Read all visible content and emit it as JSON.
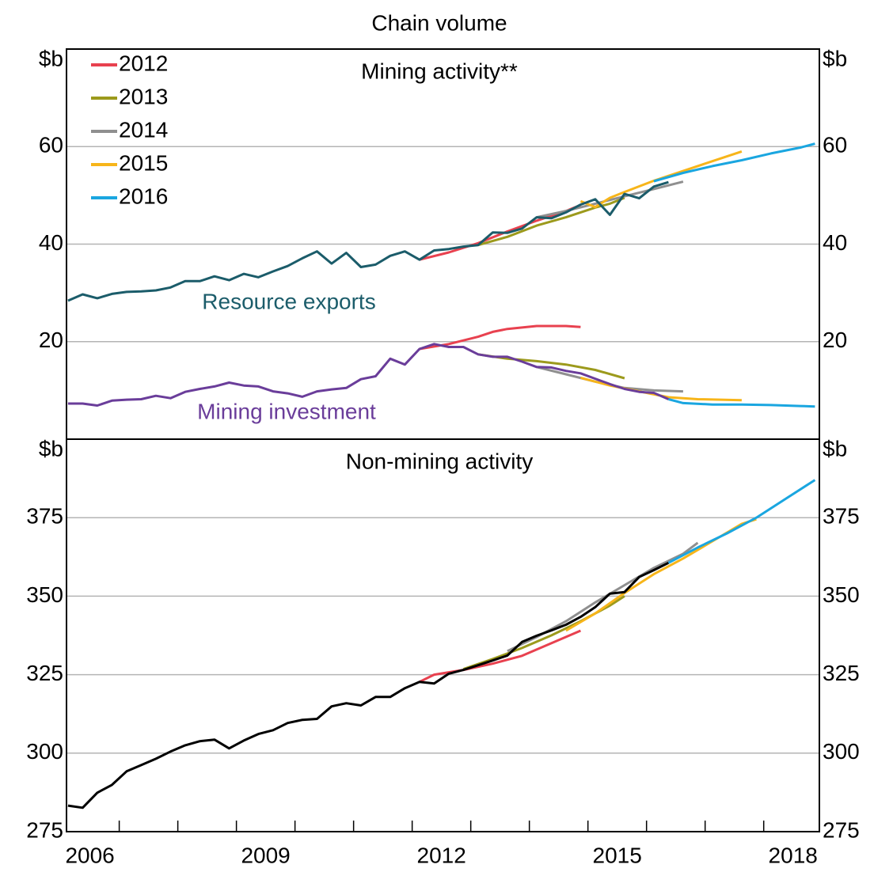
{
  "chart_data": [
    {
      "type": "line",
      "subtitle": "Chain volume",
      "title": "Mining activity**",
      "y_unit": "$b",
      "xlim": [
        2006.1,
        2018.95
      ],
      "ylim": [
        0,
        80
      ],
      "yticks": [
        20,
        40,
        60
      ],
      "grid": true,
      "legend": "upper left",
      "x": [
        2006.125,
        2006.375,
        2006.625,
        2006.875,
        2007.125,
        2007.375,
        2007.625,
        2007.875,
        2008.125,
        2008.375,
        2008.625,
        2008.875,
        2009.125,
        2009.375,
        2009.625,
        2009.875,
        2010.125,
        2010.375,
        2010.625,
        2010.875,
        2011.125,
        2011.375,
        2011.625,
        2011.875,
        2012.125,
        2012.375,
        2012.625,
        2012.875,
        2013.125,
        2013.375,
        2013.625,
        2013.875,
        2014.125,
        2014.375,
        2014.625,
        2014.875,
        2015.125,
        2015.375,
        2015.625,
        2015.875,
        2016.125,
        2016.375
      ],
      "series": [
        {
          "label": "Resource exports",
          "color": "#1b5c6a",
          "values": [
            28.4,
            29.7,
            28.9,
            29.8,
            30.2,
            30.3,
            30.5,
            31.1,
            32.4,
            32.4,
            33.4,
            32.6,
            33.9,
            33.2,
            34.4,
            35.5,
            37.1,
            38.5,
            36.0,
            38.2,
            35.3,
            35.8,
            37.6,
            38.5,
            36.8,
            38.7,
            39.0,
            39.5,
            39.8,
            42.4,
            42.3,
            43.2,
            45.5,
            45.3,
            46.5,
            48.1,
            49.2,
            46.0,
            50.3,
            49.4,
            51.8,
            52.7
          ]
        },
        {
          "label": "Mining investment",
          "color": "#6a3d9a",
          "values": [
            7.3,
            7.3,
            6.9,
            7.9,
            8.1,
            8.2,
            8.9,
            8.4,
            9.7,
            10.3,
            10.8,
            11.6,
            11.0,
            10.8,
            9.8,
            9.4,
            8.7,
            9.8,
            10.2,
            10.5,
            12.3,
            12.9,
            16.5,
            15.3,
            18.5,
            19.5,
            18.9,
            18.9,
            17.4,
            16.9,
            16.9,
            15.9,
            14.8,
            14.7,
            14.0,
            13.5,
            12.4,
            11.3,
            10.3,
            9.7,
            9.5,
            8.2
          ]
        }
      ],
      "forecasts": [
        {
          "name": "2012",
          "color": "#e8414f",
          "lines": [
            {
              "x": [
                2012.125,
                2012.625,
                2013.125,
                2013.625,
                2014.125,
                2014.625,
                2014.875
              ],
              "values": [
                36.8,
                38.3,
                40.2,
                42.6,
                44.8,
                46.8,
                48.0
              ]
            },
            {
              "x": [
                2012.125,
                2012.625,
                2013.125,
                2013.375,
                2013.625,
                2014.125,
                2014.625,
                2014.875
              ],
              "values": [
                18.5,
                19.5,
                21.0,
                22.0,
                22.6,
                23.2,
                23.2,
                23.0
              ]
            }
          ]
        },
        {
          "name": "2013",
          "color": "#9c9a1c",
          "lines": [
            {
              "x": [
                2013.125,
                2013.625,
                2014.125,
                2014.625,
                2015.125,
                2015.375,
                2015.625
              ],
              "values": [
                39.8,
                41.5,
                43.8,
                45.5,
                47.5,
                48.3,
                49.5
              ]
            },
            {
              "x": [
                2013.125,
                2013.625,
                2014.125,
                2014.625,
                2015.125,
                2015.625
              ],
              "values": [
                17.4,
                16.5,
                16.0,
                15.3,
                14.2,
                12.5
              ]
            }
          ]
        },
        {
          "name": "2014",
          "color": "#8f8f8f",
          "lines": [
            {
              "x": [
                2014.125,
                2014.625,
                2015.125,
                2015.625,
                2016.125,
                2016.625
              ],
              "values": [
                45.5,
                46.8,
                48.3,
                49.8,
                51.3,
                52.8
              ]
            },
            {
              "x": [
                2014.125,
                2014.625,
                2015.125,
                2015.625,
                2016.125,
                2016.625
              ],
              "values": [
                14.8,
                13.3,
                11.8,
                10.5,
                10.0,
                9.8
              ]
            }
          ]
        },
        {
          "name": "2015",
          "color": "#f7b51a",
          "lines": [
            {
              "x": [
                2014.875,
                2015.125,
                2015.375,
                2015.625,
                2016.125,
                2016.625,
                2017.125,
                2017.625
              ],
              "values": [
                48.8,
                47.6,
                49.5,
                50.7,
                53.0,
                55.0,
                57.0,
                59.0
              ]
            },
            {
              "x": [
                2014.875,
                2015.375,
                2015.875,
                2016.375,
                2016.875,
                2017.625
              ],
              "values": [
                12.6,
                11.0,
                9.8,
                8.6,
                8.2,
                8.0
              ]
            }
          ]
        },
        {
          "name": "2016",
          "color": "#1aa6e0",
          "lines": [
            {
              "x": [
                2016.125,
                2016.625,
                2017.125,
                2017.625,
                2018.125,
                2018.625,
                2018.875
              ],
              "values": [
                52.9,
                54.6,
                56.0,
                57.2,
                58.6,
                59.8,
                60.6
              ]
            },
            {
              "x": [
                2016.375,
                2016.625,
                2017.125,
                2017.625,
                2018.125,
                2018.625,
                2018.875
              ],
              "values": [
                8.2,
                7.4,
                7.1,
                7.1,
                7.0,
                6.8,
                6.7
              ]
            }
          ]
        }
      ]
    },
    {
      "type": "line",
      "title": "Non-mining activity",
      "y_unit": "$b",
      "xlim": [
        2006.1,
        2018.95
      ],
      "ylim": [
        275,
        400
      ],
      "yticks": [
        275,
        300,
        325,
        350,
        375
      ],
      "grid": true,
      "xticks": [
        {
          "value": 2006.5,
          "label": "2006"
        },
        {
          "value": 2009.5,
          "label": "2009"
        },
        {
          "value": 2012.5,
          "label": "2012"
        },
        {
          "value": 2015.5,
          "label": "2015"
        },
        {
          "value": 2018.5,
          "label": "2018"
        }
      ],
      "xtick_marks": [
        2007,
        2008,
        2009,
        2010,
        2011,
        2012,
        2013,
        2014,
        2015,
        2016,
        2017,
        2018
      ],
      "x": [
        2006.125,
        2006.375,
        2006.625,
        2006.875,
        2007.125,
        2007.375,
        2007.625,
        2007.875,
        2008.125,
        2008.375,
        2008.625,
        2008.875,
        2009.125,
        2009.375,
        2009.625,
        2009.875,
        2010.125,
        2010.375,
        2010.625,
        2010.875,
        2011.125,
        2011.375,
        2011.625,
        2011.875,
        2012.125,
        2012.375,
        2012.625,
        2012.875,
        2013.125,
        2013.375,
        2013.625,
        2013.875,
        2014.125,
        2014.375,
        2014.625,
        2014.875,
        2015.125,
        2015.375,
        2015.625,
        2015.875,
        2016.125,
        2016.375
      ],
      "series": [
        {
          "color": "#000000",
          "values": [
            283.3,
            282.6,
            287.4,
            289.9,
            294.2,
            296.2,
            298.2,
            300.5,
            302.5,
            303.8,
            304.3,
            301.5,
            304.0,
            306.1,
            307.3,
            309.6,
            310.6,
            310.9,
            314.9,
            315.9,
            315.2,
            317.9,
            317.9,
            320.7,
            322.7,
            322.2,
            325.3,
            326.5,
            328.0,
            329.5,
            331.1,
            335.4,
            337.4,
            339.1,
            340.9,
            343.4,
            346.5,
            350.8,
            351.3,
            356.1,
            358.3,
            360.6
          ]
        }
      ],
      "forecasts": [
        {
          "color": "#e8414f",
          "lines": [
            {
              "x": [
                2012.125,
                2012.375,
                2012.875,
                2013.375,
                2013.875,
                2014.375,
                2014.875
              ],
              "values": [
                322.7,
                325.0,
                326.5,
                328.5,
                331.0,
                335.0,
                339.0
              ]
            }
          ]
        },
        {
          "color": "#9c9a1c",
          "lines": [
            {
              "x": [
                2012.875,
                2013.375,
                2013.875,
                2014.375,
                2014.875,
                2015.375,
                2015.625
              ],
              "values": [
                326.8,
                330.0,
                333.5,
                337.5,
                342.0,
                347.0,
                350.0
              ]
            }
          ]
        },
        {
          "color": "#8f8f8f",
          "lines": [
            {
              "x": [
                2013.625,
                2014.125,
                2014.625,
                2015.125,
                2015.625,
                2016.125,
                2016.625,
                2016.875
              ],
              "values": [
                332.5,
                337.0,
                342.0,
                348.0,
                353.5,
                359.0,
                363.5,
                367.0
              ]
            }
          ]
        },
        {
          "color": "#f7b51a",
          "lines": [
            {
              "x": [
                2014.625,
                2015.125,
                2015.625,
                2016.125,
                2016.625,
                2017.125,
                2017.625,
                2017.875
              ],
              "values": [
                339.0,
                344.5,
                351.0,
                357.0,
                362.0,
                367.5,
                373.0,
                374.5
              ]
            }
          ]
        },
        {
          "color": "#1aa6e0",
          "lines": [
            {
              "x": [
                2016.375,
                2016.875,
                2017.375,
                2017.875,
                2018.375,
                2018.875
              ],
              "values": [
                360.6,
                365.5,
                370.0,
                375.0,
                381.0,
                387.0
              ]
            }
          ]
        }
      ]
    }
  ]
}
